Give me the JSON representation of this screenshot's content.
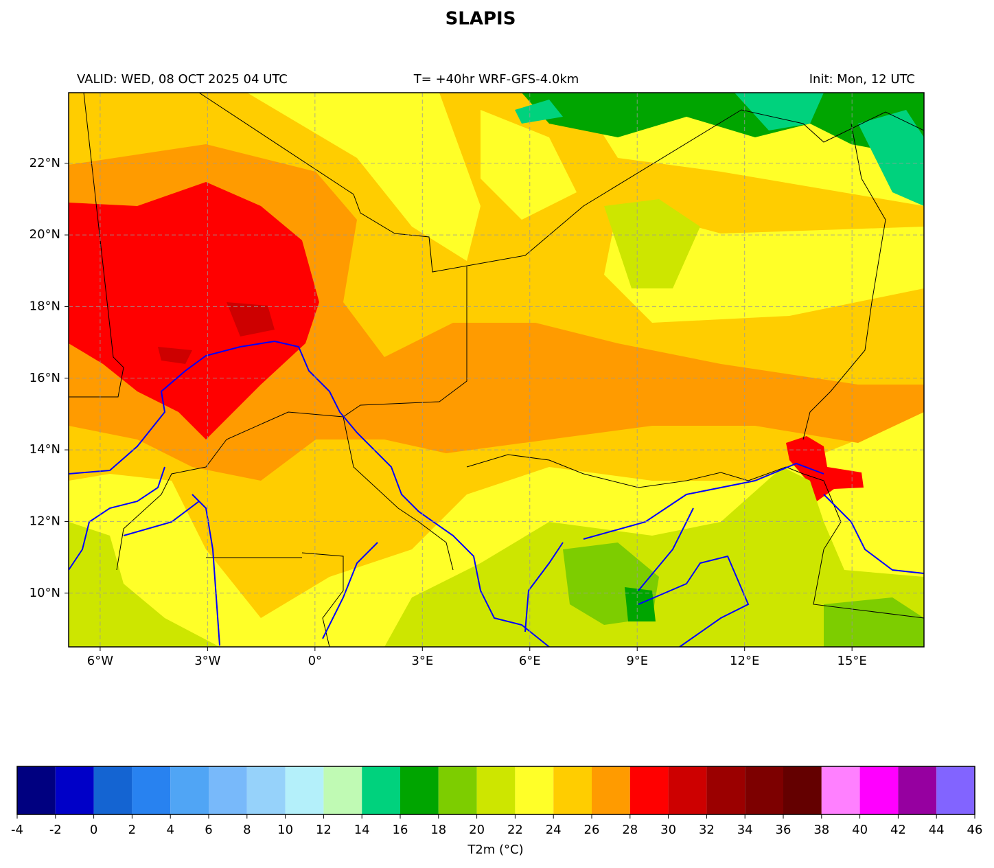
{
  "title": "SLAPIS",
  "valid": "VALID: WED, 08 OCT 2025 04 UTC",
  "run": "T= +40hr WRF-GFS-4.0km",
  "init": "Init: Mon, 12 UTC",
  "map": {
    "xlim": [
      -6.88,
      17.01
    ],
    "ylim": [
      8.5,
      23.97
    ],
    "xticks": [
      {
        "value": -6,
        "label": "6°W"
      },
      {
        "value": -3,
        "label": "3°W"
      },
      {
        "value": 0,
        "label": "0°"
      },
      {
        "value": 3,
        "label": "3°E"
      },
      {
        "value": 6,
        "label": "6°E"
      },
      {
        "value": 9,
        "label": "9°E"
      },
      {
        "value": 12,
        "label": "12°E"
      },
      {
        "value": 15,
        "label": "15°E"
      }
    ],
    "yticks": [
      {
        "value": 10,
        "label": "10°N"
      },
      {
        "value": 12,
        "label": "12°N"
      },
      {
        "value": 14,
        "label": "14°N"
      },
      {
        "value": 16,
        "label": "16°N"
      },
      {
        "value": 18,
        "label": "18°N"
      },
      {
        "value": 20,
        "label": "20°N"
      },
      {
        "value": 22,
        "label": "22°N"
      }
    ],
    "grid": true
  },
  "colorbar": {
    "label": "T2m (°C)",
    "ticks": [
      -4,
      -2,
      0,
      2,
      4,
      6,
      8,
      10,
      12,
      14,
      16,
      18,
      20,
      22,
      24,
      26,
      28,
      30,
      32,
      34,
      36,
      38,
      40,
      42,
      44,
      46
    ],
    "colors": [
      "#000080",
      "#0000c8",
      "#1464d2",
      "#2882f0",
      "#50a5f5",
      "#78b9fa",
      "#96d2fa",
      "#b4f0fa",
      "#c0fab4",
      "#00d27d",
      "#00a500",
      "#7dcd00",
      "#cde600",
      "#ffff28",
      "#ffcd00",
      "#ff9b00",
      "#ff0000",
      "#cd0000",
      "#9b0000",
      "#7d0000",
      "#640000",
      "#ff80ff",
      "#ff00ff",
      "#9600a0",
      "#8264ff"
    ]
  }
}
